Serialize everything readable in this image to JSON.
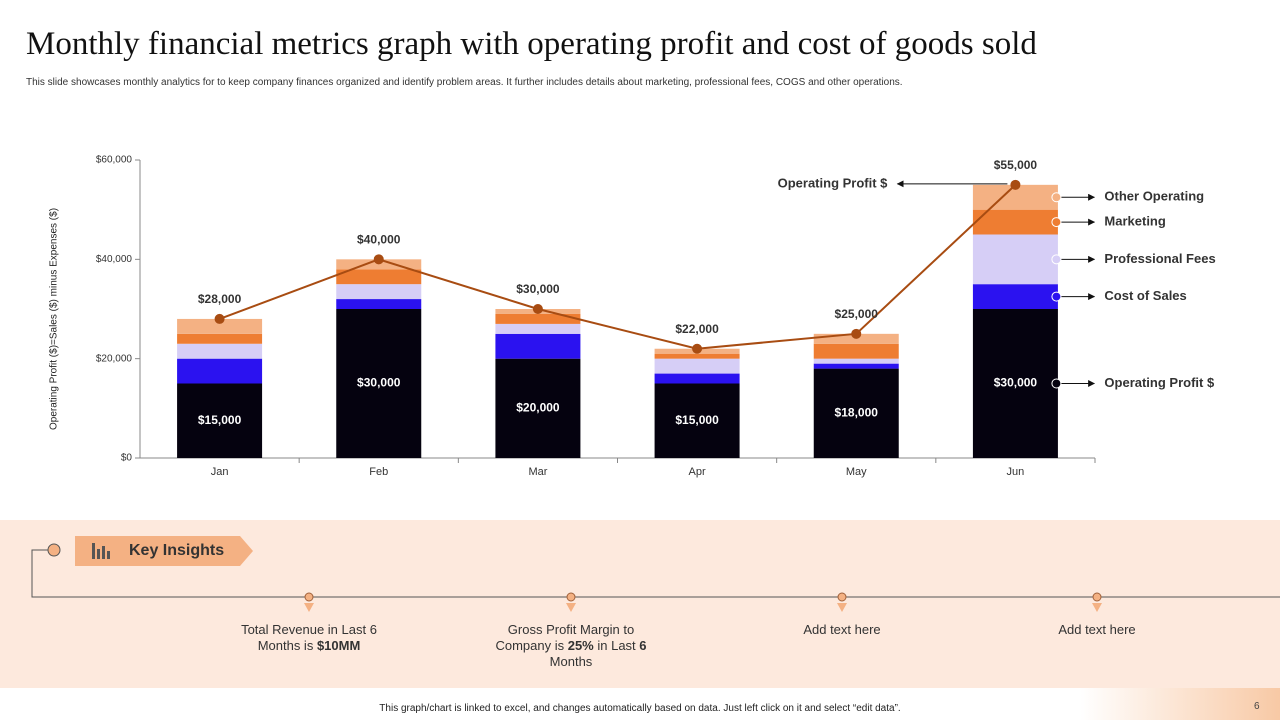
{
  "chart_data": {
    "type": "bar",
    "stacked": true,
    "title": "Monthly financial metrics graph with operating profit and cost of goods sold",
    "subtitle": "This slide showcases monthly analytics for to keep company finances organized and identify problem areas. It further includes details about marketing, professional fees, COGS and other operations.",
    "y_label": "Operating Profit ($)=Sales ($) minus Expenses ($)",
    "categories": [
      "Jan",
      "Feb",
      "Mar",
      "Apr",
      "May",
      "Jun"
    ],
    "ylim": [
      0,
      60000
    ],
    "yticks": [
      {
        "value": 0,
        "label": "$0"
      },
      {
        "value": 20000,
        "label": "$20,000"
      },
      {
        "value": 40000,
        "label": "$40,000"
      },
      {
        "value": 60000,
        "label": "$60,000"
      }
    ],
    "series": [
      {
        "name": "Operating Profit $",
        "color": "#05020f",
        "values": [
          15000,
          30000,
          20000,
          15000,
          18000,
          30000
        ],
        "value_labels": [
          "$15,000",
          "$30,000",
          "$20,000",
          "$15,000",
          "$18,000",
          "$30,000"
        ]
      },
      {
        "name": "Cost of Sales",
        "color": "#2b12f0",
        "values": [
          5000,
          2000,
          5000,
          2000,
          1000,
          5000
        ]
      },
      {
        "name": "Professional Fees",
        "color": "#d6cef6",
        "values": [
          3000,
          3000,
          2000,
          3000,
          1000,
          10000
        ]
      },
      {
        "name": "Marketing",
        "color": "#ee7d32",
        "values": [
          2000,
          3000,
          2000,
          1000,
          3000,
          5000
        ]
      },
      {
        "name": "Other Operating",
        "color": "#f4b183",
        "values": [
          3000,
          2000,
          1000,
          1000,
          2000,
          5000
        ]
      },
      {
        "name": "Operating Profit $",
        "type": "line",
        "color": "#a84c12",
        "values": [
          28000,
          40000,
          30000,
          22000,
          25000,
          55000
        ],
        "value_labels": [
          "$28,000",
          "$40,000",
          "$30,000",
          "$22,000",
          "$25,000",
          "$55,000"
        ]
      }
    ]
  },
  "slide": {
    "key_insights_title": "Key Insights",
    "insights": [
      {
        "parts": [
          "Total Revenue  in Last 6 Months is ",
          "$10MM"
        ]
      },
      {
        "parts": [
          "Gross Profit Margin to Company is ",
          "25%",
          " in Last ",
          "6",
          " Months"
        ]
      },
      {
        "parts": [
          "Add text here"
        ]
      },
      {
        "parts": [
          "Add text here"
        ]
      }
    ],
    "footer_note": "This graph/chart is linked to excel, and changes automatically based on data. Just left click on it and select “edit data”.",
    "page_number": "6"
  }
}
